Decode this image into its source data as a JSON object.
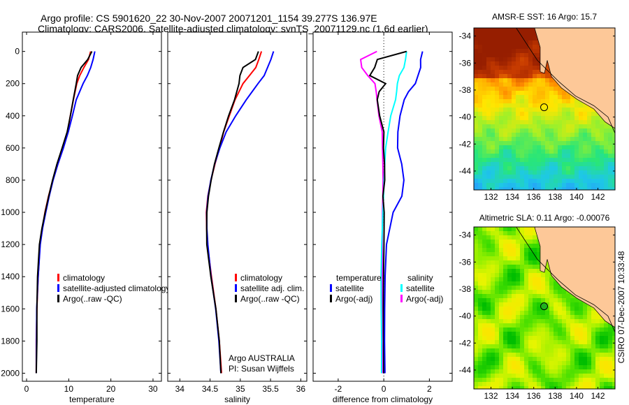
{
  "header": {
    "line1": "Argo profile: CS 5901620_22 30-Nov-2007 20071201_1154 39.277S 136.97E",
    "line2": "Climatology: CARS2006. Satellite-adjusted climatology: synTS_20071129.nc (1.6d earlier)"
  },
  "colors": {
    "red": "#ff0000",
    "blue": "#0000ff",
    "black": "#000000",
    "cyan": "#00ffff",
    "magenta": "#ff00ff",
    "land": "#fdc898"
  },
  "chart_data": [
    {
      "type": "line",
      "xlabel": "temperature",
      "xlim": [
        -1,
        32
      ],
      "ylim": [
        0,
        2050
      ],
      "xticks": [
        0,
        10,
        20,
        30
      ],
      "xtick_labels": [
        "0",
        "10",
        "20",
        "30"
      ],
      "yticks": [
        0,
        200,
        400,
        600,
        800,
        1000,
        1200,
        1400,
        1600,
        1800,
        2000
      ],
      "ytick_labels": [
        "0",
        "200",
        "400",
        "600",
        "800",
        "1000",
        "1200",
        "1400",
        "1600",
        "1800",
        "2000"
      ],
      "depth": [
        0,
        50,
        100,
        150,
        200,
        300,
        400,
        500,
        600,
        700,
        800,
        900,
        1000,
        1100,
        1200,
        1400,
        1600,
        1800,
        2000
      ],
      "series": [
        {
          "name": "climatology",
          "color": "#ff0000",
          "values": [
            15.2,
            14.6,
            13.5,
            12.6,
            12,
            11.2,
            10.4,
            9.7,
            8.6,
            7.4,
            6.3,
            5.3,
            4.4,
            3.7,
            3.1,
            2.7,
            2.5,
            2.4,
            2.3
          ]
        },
        {
          "name": "satellite-adjusted climatology",
          "color": "#0000ff",
          "values": [
            16.2,
            15.7,
            15.2,
            14.5,
            13.5,
            11.8,
            10.8,
            9.8,
            8.7,
            7.5,
            6.4,
            5.4,
            4.5,
            3.7,
            3.2,
            2.8,
            2.5,
            2.4,
            2.3
          ]
        },
        {
          "name": "Argo(..raw -QC)",
          "color": "#000000",
          "values": [
            15.5,
            14.5,
            13,
            12.2,
            11.8,
            11,
            10.3,
            9.6,
            8.5,
            7.3,
            6.2,
            5.2,
            4.3,
            3.6,
            3.1,
            2.7,
            2.5,
            2.4,
            2.3
          ]
        }
      ],
      "legend": {
        "position": "bottom-middle",
        "entries": [
          "climatology",
          "satellite-adjusted climatology",
          "Argo(..raw -QC)"
        ]
      }
    },
    {
      "type": "line",
      "xlabel": "salinity",
      "xlim": [
        33.8,
        36.1
      ],
      "ylim": [
        0,
        2050
      ],
      "xticks": [
        34,
        34.5,
        35,
        35.5,
        36
      ],
      "xtick_labels": [
        "34",
        "34.5",
        "35",
        "35.5",
        "36"
      ],
      "depth": [
        0,
        50,
        100,
        150,
        200,
        300,
        400,
        500,
        600,
        700,
        800,
        900,
        1000,
        1100,
        1200,
        1400,
        1600,
        1800,
        2000
      ],
      "series": [
        {
          "name": "climatology",
          "color": "#ff0000",
          "values": [
            35.35,
            35.3,
            35.25,
            35.15,
            35.05,
            34.92,
            34.82,
            34.72,
            34.65,
            34.58,
            34.52,
            34.47,
            34.44,
            34.44,
            34.45,
            34.52,
            34.6,
            34.66,
            34.69
          ]
        },
        {
          "name": "satellite adj. clim.",
          "color": "#0000ff",
          "values": [
            35.55,
            35.5,
            35.45,
            35.4,
            35.3,
            35.1,
            34.92,
            34.76,
            34.66,
            34.58,
            34.52,
            34.47,
            34.44,
            34.44,
            34.46,
            34.52,
            34.6,
            34.65,
            34.68
          ]
        },
        {
          "name": "Argo(..raw -QC)",
          "color": "#000000",
          "values": [
            35.3,
            35.25,
            35.05,
            35.0,
            34.98,
            34.9,
            34.8,
            34.72,
            34.65,
            34.58,
            34.52,
            34.47,
            34.44,
            34.44,
            34.45,
            34.52,
            34.6,
            34.65,
            34.68
          ]
        }
      ],
      "legend": {
        "position": "bottom-right",
        "entries": [
          "climatology",
          "satellite adj. clim.",
          "Argo(..raw -QC)"
        ]
      },
      "annotation": [
        "Argo AUSTRALIA",
        "PI: Susan Wijffels"
      ]
    },
    {
      "type": "line",
      "xlabel": "difference from climatology",
      "xlim": [
        -3.1,
        3
      ],
      "ylim": [
        0,
        2050
      ],
      "xticks": [
        -2,
        0,
        2
      ],
      "xtick_labels": [
        "-2",
        "0",
        "2"
      ],
      "depth": [
        0,
        50,
        100,
        150,
        200,
        250,
        300,
        400,
        500,
        600,
        700,
        800,
        900,
        1000,
        1200,
        1400,
        1600,
        1800,
        2000
      ],
      "series": [
        {
          "name": "temperature satellite",
          "color": "#0000ff",
          "values": [
            1.7,
            1.6,
            1.6,
            1.5,
            1.4,
            1.1,
            0.9,
            0.7,
            0.6,
            0.6,
            0.8,
            0.9,
            0.8,
            0.4,
            0.1,
            0.05,
            0.05,
            0.05,
            0.05
          ]
        },
        {
          "name": "temperature Argo(-adj)",
          "color": "#000000",
          "values": [
            1.0,
            -0.3,
            -0.4,
            -0.6,
            0.1,
            -0.2,
            -0.3,
            -0.2,
            0,
            0,
            0.05,
            0.05,
            -0.05,
            0,
            0,
            0,
            0,
            0,
            0
          ]
        },
        {
          "name": "salinity satellite",
          "color": "#00ffff",
          "values": [
            1.0,
            0.95,
            0.9,
            0.7,
            0.6,
            0.55,
            0.5,
            0.3,
            0.2,
            0.1,
            0.05,
            0,
            -0.03,
            -0.05,
            -0.08,
            -0.1,
            -0.1,
            -0.1,
            -0.1
          ]
        },
        {
          "name": "salinity Argo(-adj)",
          "color": "#ff00ff",
          "values": [
            -0.3,
            -1.0,
            -0.95,
            -0.7,
            -0.4,
            -0.35,
            -0.3,
            -0.2,
            -0.05,
            -0.05,
            -0.05,
            -0.05,
            -0.05,
            -0.05,
            -0.05,
            -0.05,
            -0.05,
            -0.05,
            -0.05
          ]
        }
      ],
      "zero_line": 0,
      "legend": {
        "position": "bottom",
        "headers": [
          "temperature",
          "salinity"
        ],
        "entries": [
          "satellite",
          "Argo(-adj)",
          "satellite",
          "Argo(-adj)"
        ]
      }
    },
    {
      "type": "heatmap",
      "title": "AMSR-E SST: 16 Argo: 15.7",
      "xticks": [
        132,
        134,
        136,
        138,
        140,
        142
      ],
      "xtick_labels": [
        "132",
        "134",
        "136",
        "138",
        "140",
        "142"
      ],
      "yticks": [
        -34,
        -36,
        -38,
        -40,
        -42,
        -44
      ],
      "ytick_labels": [
        "-34",
        "-36",
        "-38",
        "-40",
        "-42",
        "-44"
      ],
      "xlim": [
        130.4,
        143.6
      ],
      "ylim": [
        -45.4,
        -33.4
      ],
      "marker": {
        "lon": 136.97,
        "lat": -39.277
      }
    },
    {
      "type": "heatmap",
      "title": "Altimetric SLA: 0.11 Argo: -0.00076",
      "xticks": [
        132,
        134,
        136,
        138,
        140,
        142
      ],
      "xtick_labels": [
        "132",
        "134",
        "136",
        "138",
        "140",
        "142"
      ],
      "yticks": [
        -34,
        -36,
        -38,
        -40,
        -42,
        -44
      ],
      "ytick_labels": [
        "-34",
        "-36",
        "-38",
        "-40",
        "-42",
        "-44"
      ],
      "xlim": [
        130.4,
        143.6
      ],
      "ylim": [
        -45.4,
        -33.4
      ],
      "marker": {
        "lon": 136.97,
        "lat": -39.277
      }
    }
  ],
  "footer": {
    "stamp": "CSIRO 07-Dec-2007 10:33:48"
  }
}
